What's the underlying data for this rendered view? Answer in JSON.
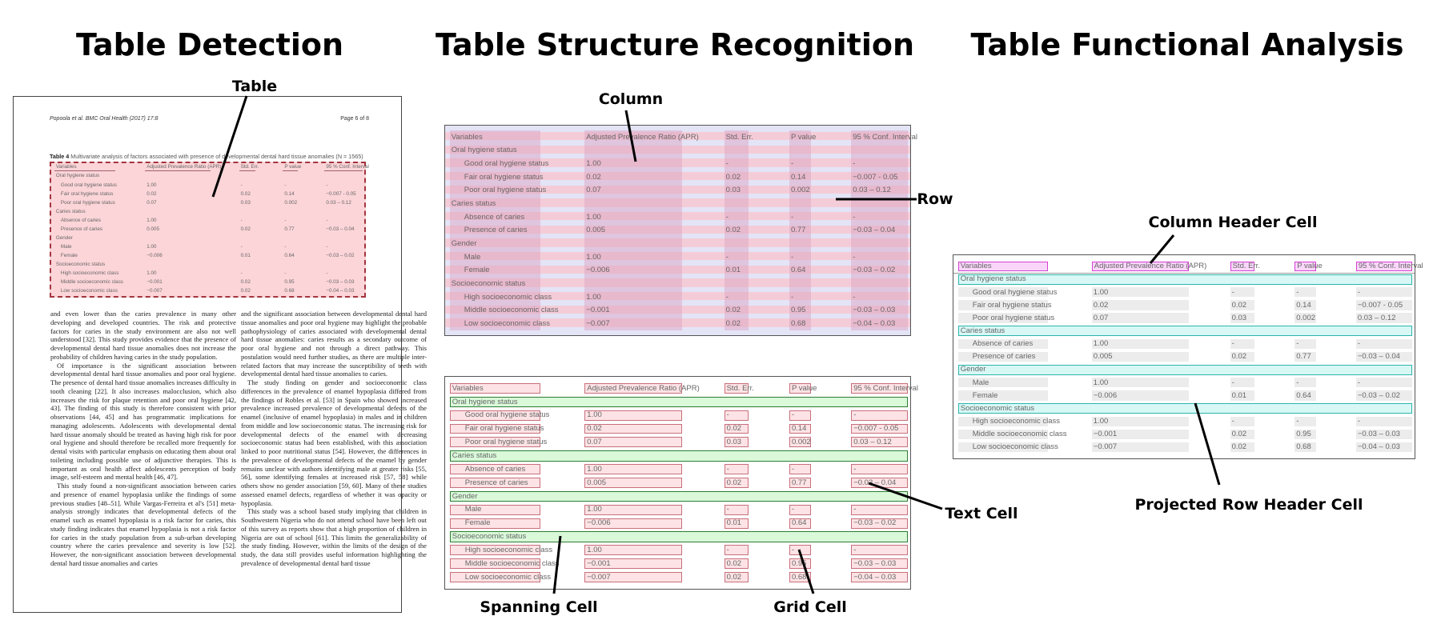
{
  "titles": {
    "detection": "Table Detection",
    "structure": "Table Structure Recognition",
    "functional": "Table Functional Analysis"
  },
  "labels": {
    "table": "Table",
    "column": "Column",
    "row": "Row",
    "column_header_cell": "Column Header Cell",
    "text_cell": "Text Cell",
    "spanning_cell": "Spanning Cell",
    "grid_cell": "Grid Cell",
    "projected_row_header_cell": "Projected Row Header Cell"
  },
  "page": {
    "running_head": "Popoola et al. BMC Oral Health (2017) 17:8",
    "page_number": "Page 6 of 8",
    "caption_label": "Table 4",
    "caption_text": "Multivariate analysis of factors associated with presence of developmental dental hard tissue anomalies (N = 1565)",
    "left_column": [
      "and even lower than the caries prevalence in many other developing and developed countries. The risk and protective factors for caries in the study environment are also not well understood [32]. This study provides evidence that the presence of developmental dental hard tissue anomalies does not increase the probability of children having caries in the study population.",
      "Of importance is the significant association between developmental dental hard tissue anomalies and poor oral hygiene. The presence of dental hard tissue anomalies increases difficulty in tooth cleaning [22]. It also increases malocclusion, which also increases the risk for plaque retention and poor oral hygiene [42, 43]. The finding of this study is therefore consistent with prior observations [44, 45] and has programmatic implications for managing adolescents. Adolescents with developmental dental hard tissue anomaly should be treated as having high risk for poor oral hygiene and should therefore be recalled more frequently for dental visits with particular emphasis on educating them about oral toileting including possible use of adjunctive therapies. This is important as oral health affect adolescents perception of body image, self-esteem and mental health [46, 47].",
      "This study found a non-significant association between caries and presence of enamel hypoplasia unlike the findings of some previous studies [48–51]. While Vargas-Ferreira et al's [51] meta-analysis strongly indicates that developmental defects of the enamel such as enamel hypoplasia is a risk factor for caries, this study finding indicates that enamel hypoplasia is not a risk factor for caries in the study population from a sub-urban developing country where the caries prevalence and severity is low [52]. However, the non-significant association between developmental dental hard tissue anomalies and caries"
    ],
    "right_column": [
      "and the significant association between developmental dental hard tissue anomalies and poor oral hygiene may highlight the probable pathophysiology of caries associated with developmental dental hard tissue anomalies: caries results as a secondary outcome of poor oral hygiene and not through a direct pathway. This postulation would need further studies, as there are multiple inter-related factors that may increase the susceptibility of teeth with developmental dental hard tissue anomalies to caries.",
      "The study finding on gender and socioeconomic class differences in the prevalence of enamel hypoplasia differed from the findings of Robles et al. [53] in Spain who showed increased prevalence increased prevalence of developmental defects of the enamel (inclusive of enamel hypoplasia) in males and in children from middle and low socioeconomic status. The increasing risk for developmental defects of the enamel with decreasing socioeconomic status had been established, with this association linked to poor nutritional status [54]. However, the differences in the prevalence of developmental defects of the enamel by gender remains unclear with authors identifying male at greater risks [55, 56], some identifying females at increased risk [57, 58] while others show no gender association [59, 60]. Many of these studies assessed enamel defects, regardless of whether it was opacity or hypoplasia.",
      "This study was a school based study implying that children in Southwestern Nigeria who do not attend school have been left out of this survey as reports show that a high proportion of children in Nigeria are out of school [61]. This limits the generalizability of the study finding. However, within the limits of the design of the study, the data still provides useful information highlighting the prevalence of developmental dental hard tissue"
    ]
  },
  "table": {
    "header": [
      "Variables",
      "Adjusted Prevalence Ratio (APR)",
      "Std. Err.",
      "P value",
      "95 % Conf. Interval"
    ],
    "rows": [
      {
        "section": "Oral hygiene status"
      },
      {
        "cells": [
          "Good oral hygiene status",
          "1.00",
          "-",
          "-",
          "-"
        ]
      },
      {
        "cells": [
          "Fair oral hygiene status",
          "0.02",
          "0.02",
          "0.14",
          "−0.007 - 0.05"
        ]
      },
      {
        "cells": [
          "Poor oral hygiene status",
          "0.07",
          "0.03",
          "0.002",
          "0.03 – 0.12"
        ]
      },
      {
        "section": "Caries status"
      },
      {
        "cells": [
          "Absence of caries",
          "1.00",
          "-",
          "-",
          "-"
        ]
      },
      {
        "cells": [
          "Presence of caries",
          "0.005",
          "0.02",
          "0.77",
          "−0.03 – 0.04"
        ]
      },
      {
        "section": "Gender"
      },
      {
        "cells": [
          "Male",
          "1.00",
          "-",
          "-",
          "-"
        ]
      },
      {
        "cells": [
          "Female",
          "−0.006",
          "0.01",
          "0.64",
          "−0.03 – 0.02"
        ]
      },
      {
        "section": "Socioeconomic status"
      },
      {
        "cells": [
          "High socioeconomic class",
          "1.00",
          "-",
          "-",
          "-"
        ]
      },
      {
        "cells": [
          "Middle socioeconomic class",
          "−0.001",
          "0.02",
          "0.95",
          "−0.03 – 0.03"
        ]
      },
      {
        "cells": [
          "Low socioeconomic class",
          "−0.007",
          "0.02",
          "0.68",
          "−0.04 – 0.03"
        ]
      }
    ]
  },
  "colors": {
    "detection_fill": "#fcd5d8",
    "detection_border": "#a3343f",
    "row_band": "#f7c6d0",
    "column_band": "#d9a0bf",
    "gap_band": "#e4e4f7",
    "cell_fill": "#fde3e5",
    "cell_border": "#c86f7c",
    "spanning_fill": "#d9f9d9",
    "spanning_border": "#2e7d32",
    "header_border": "#d63fd6",
    "header_fill": "#f9d6f9",
    "projected_fill": "#d8f8f6",
    "projected_border": "#2bb5ad",
    "grid_fill": "#ececec"
  }
}
